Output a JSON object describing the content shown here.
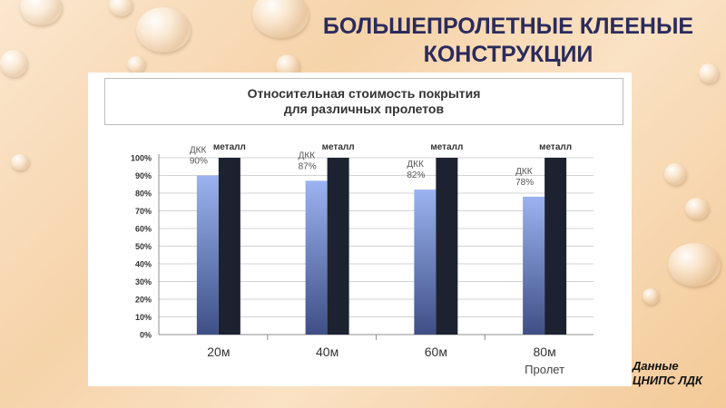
{
  "slide": {
    "title_line1": "БОЛЬШЕПРОЛЕТНЫЕ КЛЕЕНЫЕ",
    "title_line2": "КОНСТРУКЦИИ",
    "source_line1": "Данные",
    "source_line2": "ЦНИПС ЛДК"
  },
  "chart_data": {
    "type": "bar",
    "title_line1": "Относительная стоимость покрытия",
    "title_line2": "для различных пролетов",
    "xlabel": "Пролет",
    "ylabel": "",
    "categories": [
      "20м",
      "40м",
      "60м",
      "80м"
    ],
    "series": [
      {
        "name": "ДКК",
        "values": [
          90,
          87,
          82,
          78
        ],
        "color": "#8fa8ea"
      },
      {
        "name": "металл",
        "values": [
          100,
          100,
          100,
          100
        ],
        "color": "#1c2230"
      }
    ],
    "series_label_prefix": "ДКК",
    "metal_label": "металл",
    "ylim": [
      0,
      100
    ],
    "yticks": [
      "0%",
      "10%",
      "20%",
      "30%",
      "40%",
      "50%",
      "60%",
      "70%",
      "80%",
      "90%",
      "100%"
    ],
    "grid": true,
    "legend": "none"
  }
}
